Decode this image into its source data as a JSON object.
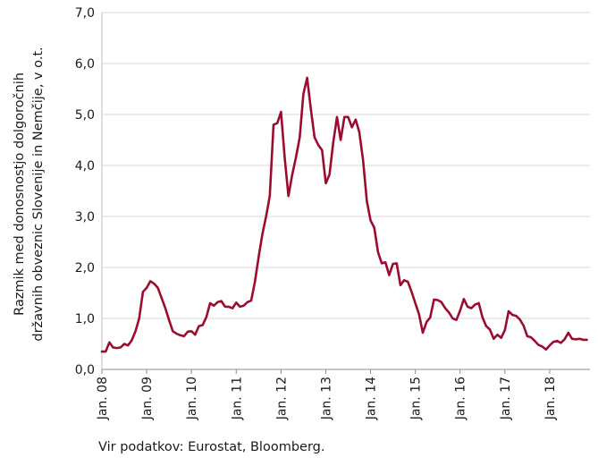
{
  "chart_data": {
    "type": "line",
    "title": "",
    "ylabel_lines": [
      "Razmik med donosnostjo dolgoročnih",
      "državnih obveznic Slovenije in Nemčije, v o.t."
    ],
    "xlabel": "",
    "ylim": [
      0,
      7
    ],
    "xlim": [
      2008.0,
      2018.9
    ],
    "y_ticks": [
      "0,0",
      "1,0",
      "2,0",
      "3,0",
      "4,0",
      "5,0",
      "6,0",
      "7,0"
    ],
    "x_ticks": [
      "Jan. 08",
      "Jan. 09",
      "Jan. 10",
      "Jan. 11",
      "Jan. 12",
      "Jan. 13",
      "Jan. 14",
      "Jan. 15",
      "Jan. 16",
      "Jan. 17",
      "Jan. 18"
    ],
    "grid": true,
    "line_color": "#9b0d2e",
    "series": [
      {
        "name": "",
        "x": [
          2008.0,
          2008.083,
          2008.167,
          2008.25,
          2008.333,
          2008.417,
          2008.5,
          2008.583,
          2008.667,
          2008.75,
          2008.833,
          2008.917,
          2009.0,
          2009.083,
          2009.167,
          2009.25,
          2009.333,
          2009.417,
          2009.5,
          2009.583,
          2009.667,
          2009.75,
          2009.833,
          2009.917,
          2010.0,
          2010.083,
          2010.167,
          2010.25,
          2010.333,
          2010.417,
          2010.5,
          2010.583,
          2010.667,
          2010.75,
          2010.833,
          2010.917,
          2011.0,
          2011.083,
          2011.167,
          2011.25,
          2011.333,
          2011.417,
          2011.5,
          2011.583,
          2011.667,
          2011.75,
          2011.833,
          2011.917,
          2012.0,
          2012.083,
          2012.167,
          2012.25,
          2012.333,
          2012.417,
          2012.5,
          2012.583,
          2012.667,
          2012.75,
          2012.833,
          2012.917,
          2013.0,
          2013.083,
          2013.167,
          2013.25,
          2013.333,
          2013.417,
          2013.5,
          2013.583,
          2013.667,
          2013.75,
          2013.833,
          2013.917,
          2014.0,
          2014.083,
          2014.167,
          2014.25,
          2014.333,
          2014.417,
          2014.5,
          2014.583,
          2014.667,
          2014.75,
          2014.833,
          2014.917,
          2015.0,
          2015.083,
          2015.167,
          2015.25,
          2015.333,
          2015.417,
          2015.5,
          2015.583,
          2015.667,
          2015.75,
          2015.833,
          2015.917,
          2016.0,
          2016.083,
          2016.167,
          2016.25,
          2016.333,
          2016.417,
          2016.5,
          2016.583,
          2016.667,
          2016.75,
          2016.833,
          2016.917,
          2017.0,
          2017.083,
          2017.167,
          2017.25,
          2017.333,
          2017.417,
          2017.5,
          2017.583,
          2017.667,
          2017.75,
          2017.833,
          2017.917,
          2018.0,
          2018.083,
          2018.167,
          2018.25,
          2018.333,
          2018.417,
          2018.5,
          2018.583,
          2018.667,
          2018.75,
          2018.833
        ],
        "values": [
          0.35,
          0.35,
          0.53,
          0.43,
          0.42,
          0.43,
          0.5,
          0.47,
          0.57,
          0.75,
          1.0,
          1.52,
          1.6,
          1.73,
          1.68,
          1.6,
          1.4,
          1.2,
          0.97,
          0.75,
          0.7,
          0.67,
          0.65,
          0.74,
          0.75,
          0.68,
          0.85,
          0.87,
          1.03,
          1.3,
          1.25,
          1.32,
          1.34,
          1.23,
          1.23,
          1.2,
          1.31,
          1.23,
          1.25,
          1.32,
          1.35,
          1.72,
          2.2,
          2.65,
          3.0,
          3.4,
          4.8,
          4.83,
          5.05,
          4.15,
          3.4,
          3.82,
          4.15,
          4.55,
          5.4,
          5.72,
          5.1,
          4.55,
          4.4,
          4.3,
          3.65,
          3.82,
          4.45,
          4.95,
          4.5,
          4.95,
          4.95,
          4.75,
          4.9,
          4.65,
          4.1,
          3.3,
          2.92,
          2.78,
          2.3,
          2.08,
          2.1,
          1.85,
          2.07,
          2.08,
          1.65,
          1.75,
          1.72,
          1.52,
          1.3,
          1.08,
          0.72,
          0.93,
          1.02,
          1.37,
          1.36,
          1.32,
          1.2,
          1.12,
          1.0,
          0.97,
          1.15,
          1.38,
          1.23,
          1.2,
          1.27,
          1.3,
          1.02,
          0.85,
          0.78,
          0.6,
          0.68,
          0.62,
          0.77,
          1.14,
          1.07,
          1.05,
          0.98,
          0.86,
          0.65,
          0.63,
          0.56,
          0.48,
          0.45,
          0.39,
          0.47,
          0.54,
          0.56,
          0.52,
          0.59,
          0.72,
          0.6,
          0.59,
          0.6,
          0.58,
          0.58
        ]
      }
    ]
  },
  "source_note": "Vir podatkov: Eurostat, Bloomberg."
}
